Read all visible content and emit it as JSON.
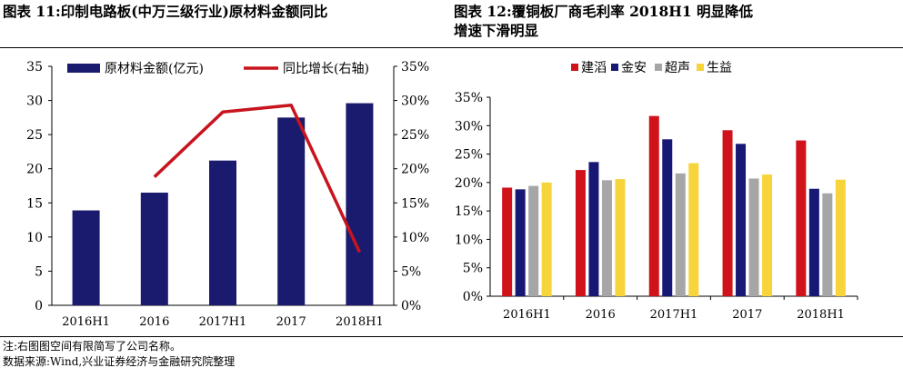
{
  "header": {
    "left_title": "图表 11:印制电路板(中万三级行业)原材料金额同比",
    "right_title": "图表 12:覆铜板厂商毛利率 2018H1 明显降低",
    "right_title_cont": "增速下滑明显"
  },
  "footer": {
    "note": "注:右图图空间有限简写了公司名称。",
    "source": "数据来源:Wind,兴业证券经济与金融研究院整理"
  },
  "colors": {
    "raw_bar": "#1a1a6e",
    "yoy_line": "#c8141e",
    "jianti": "#d0121b",
    "jinan": "#171774",
    "chaosheng": "#a6a6a6",
    "shengyi": "#f6d43a"
  },
  "chart_data": [
    {
      "type": "bar+line",
      "categories": [
        "2016H1",
        "2016",
        "2017H1",
        "2017",
        "2018H1"
      ],
      "series": [
        {
          "name": "原材料金额(亿元)",
          "type": "bar",
          "axis": "left",
          "values": [
            13.9,
            16.5,
            21.2,
            27.5,
            29.6
          ]
        },
        {
          "name": "同比增长(右轴)",
          "type": "line",
          "axis": "right",
          "values": [
            null,
            18.8,
            28.3,
            29.3,
            7.8
          ]
        }
      ],
      "y_left": {
        "min": 0,
        "max": 35,
        "ticks": [
          "0",
          "5",
          "10",
          "15",
          "20",
          "25",
          "30",
          "35"
        ]
      },
      "y_right": {
        "min": 0,
        "max": 35,
        "ticks": [
          "0%",
          "5%",
          "10%",
          "15%",
          "20%",
          "25%",
          "30%",
          "35%"
        ]
      },
      "legend": "top",
      "grid": false
    },
    {
      "type": "bar",
      "categories": [
        "2016H1",
        "2016",
        "2017H1",
        "2017",
        "2018H1"
      ],
      "series": [
        {
          "name": "建滔",
          "values": [
            19.1,
            22.2,
            31.7,
            29.2,
            27.4
          ]
        },
        {
          "name": "金安",
          "values": [
            18.8,
            23.6,
            27.6,
            26.8,
            18.9
          ]
        },
        {
          "name": "超声",
          "values": [
            19.4,
            20.4,
            21.6,
            20.7,
            18.1
          ]
        },
        {
          "name": "生益",
          "values": [
            20.0,
            20.6,
            23.4,
            21.4,
            20.5
          ]
        }
      ],
      "y": {
        "min": 0,
        "max": 35,
        "ticks": [
          "0%",
          "5%",
          "10%",
          "15%",
          "20%",
          "25%",
          "30%",
          "35%"
        ]
      },
      "legend": "top",
      "grid": false
    }
  ]
}
